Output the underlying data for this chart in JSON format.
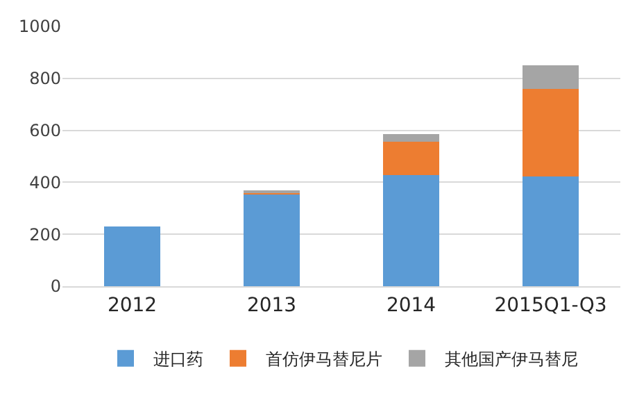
{
  "chart_data": {
    "type": "bar",
    "stacked": true,
    "categories": [
      "2012",
      "2013",
      "2014",
      "2015Q1-Q3"
    ],
    "series": [
      {
        "name": "进口药",
        "color": "#5b9bd5",
        "values": [
          230,
          356,
          427,
          422
        ]
      },
      {
        "name": "首仿伊马替尼片",
        "color": "#ed7d31",
        "values": [
          null,
          7,
          129,
          337
        ]
      },
      {
        "name": "其他国产伊马替尼",
        "color": "#a5a5a5",
        "values": [
          null,
          3,
          29,
          92
        ]
      }
    ],
    "ylim": [
      0,
      1000
    ],
    "yticks": [
      0,
      200,
      400,
      600,
      800,
      1000
    ],
    "grid": "y",
    "legend": "bottom"
  }
}
